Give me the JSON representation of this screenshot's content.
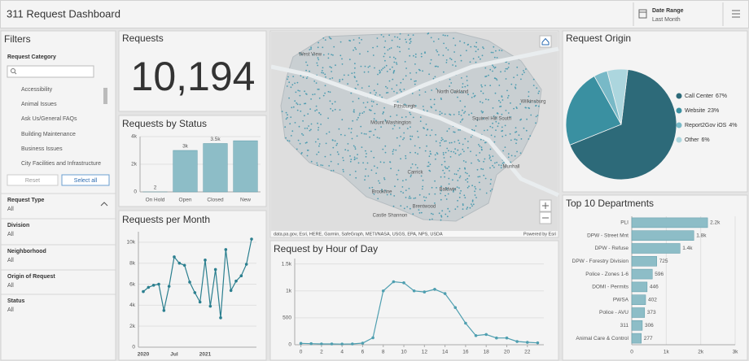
{
  "header": {
    "title": "311 Request Dashboard",
    "date_label": "Date Range",
    "date_value": "Last Month"
  },
  "filters": {
    "title": "Filters",
    "category_label": "Request Category",
    "categories": [
      "Accessibility",
      "Animal Issues",
      "Ask Us/General FAQs",
      "Building Maintenance",
      "Business Issues",
      "City Facilities and Infrastructure"
    ],
    "reset": "Reset",
    "select_all": "Select all",
    "groups": [
      {
        "label": "Request Type",
        "value": "All"
      },
      {
        "label": "Division",
        "value": "All"
      },
      {
        "label": "Neighborhood",
        "value": "All"
      },
      {
        "label": "Origin of Request",
        "value": "All"
      },
      {
        "label": "Status",
        "value": "All"
      }
    ]
  },
  "kpi": {
    "title": "Requests",
    "value": "10,194"
  },
  "map": {
    "places": [
      "West View",
      "Pittsburgh",
      "North Oakland",
      "Mount Washington",
      "Squirrel Hill South",
      "Wilkinsburg",
      "Carrick",
      "Munhall",
      "Brookline",
      "Baldwin",
      "Brentwood",
      "Castle Shannon"
    ],
    "attribution": "data.pa.gov, Esri, HERE, Garmin, SafeGraph, METI/NASA, USGS, EPA, NPS, USDA",
    "powered_by": "Powered by Esri"
  },
  "chart_data": [
    {
      "type": "bar",
      "title": "Requests by Status",
      "categories": [
        "On Hold",
        "Open",
        "Closed",
        "New"
      ],
      "values": [
        2,
        3000,
        3500,
        3700
      ],
      "value_labels": [
        "2",
        "3k",
        "3.5k",
        null
      ],
      "color": "#8dbdc7",
      "ylim": [
        0,
        4000
      ],
      "yticks": [
        0,
        {
          "value": 2000,
          "label": "2k"
        },
        {
          "value": 4000,
          "label": "4k"
        }
      ],
      "grid": true
    },
    {
      "type": "line",
      "title": "Requests per Month",
      "categories": [
        "2020",
        null,
        null,
        null,
        null,
        null,
        "Jul",
        null,
        null,
        null,
        null,
        null,
        "2021",
        null,
        null,
        null,
        null,
        null,
        null,
        null,
        null,
        null
      ],
      "values": [
        5300,
        5700,
        5900,
        6000,
        3500,
        5800,
        8600,
        8000,
        7800,
        6200,
        5200,
        4300,
        8300,
        3900,
        7400,
        2800,
        9300,
        5400,
        6300,
        6800,
        7900,
        10300
      ],
      "color": "#2b7f8f",
      "ylim": [
        0,
        11000
      ],
      "yticks": [
        0,
        {
          "value": 2000,
          "label": "2k"
        },
        {
          "value": 4000,
          "label": "4k"
        },
        {
          "value": 6000,
          "label": "6k"
        },
        {
          "value": 8000,
          "label": "8k"
        },
        {
          "value": 10000,
          "label": "10k"
        }
      ],
      "grid": true
    },
    {
      "type": "line",
      "title": "Request by Hour of Day",
      "x": [
        0,
        1,
        2,
        3,
        4,
        5,
        6,
        7,
        8,
        9,
        10,
        11,
        12,
        13,
        14,
        15,
        16,
        17,
        18,
        19,
        20,
        21,
        22,
        23
      ],
      "values": [
        25,
        20,
        15,
        15,
        12,
        15,
        30,
        130,
        1000,
        1170,
        1150,
        1000,
        980,
        1030,
        950,
        690,
        400,
        170,
        190,
        125,
        125,
        60,
        45,
        35
      ],
      "color": "#4f9fb0",
      "xlim": [
        -0.6,
        23.6
      ],
      "xticks": [
        0,
        2,
        4,
        6,
        8,
        10,
        12,
        14,
        16,
        18,
        20,
        22
      ],
      "ylim": [
        0,
        1600
      ],
      "yticks": [
        0,
        500,
        {
          "value": 1000,
          "label": "1k"
        },
        {
          "value": 1500,
          "label": "1.5k"
        }
      ],
      "grid": true
    },
    {
      "type": "pie",
      "title": "Request Origin",
      "categories": [
        "Call Center",
        "Website",
        "Report2Gov iOS",
        "Other"
      ],
      "values": [
        67,
        23,
        4,
        6
      ],
      "value_labels": [
        "67%",
        "23%",
        "4%",
        "6%"
      ],
      "colors": [
        "#2d6a79",
        "#3a90a1",
        "#78b9c7",
        "#acd6de"
      ]
    },
    {
      "type": "hbar",
      "title": "Top 10 Departments",
      "categories": [
        "PLI",
        "DPW - Street Mnt",
        "DPW - Refuse",
        "DPW - Forestry Division",
        "Police - Zones 1-6",
        "DOMI - Permits",
        "PWSA",
        "Police - AVU",
        "311",
        "Animal Care & Control"
      ],
      "values": [
        2200,
        1800,
        1400,
        725,
        596,
        446,
        402,
        373,
        306,
        277
      ],
      "value_labels": [
        "2.2k",
        "1.8k",
        "1.4k",
        "725",
        "596",
        "446",
        "402",
        "373",
        "306",
        "277"
      ],
      "color": "#8dbdc7",
      "xlim": [
        0,
        3000
      ],
      "xticks": [
        0,
        {
          "value": 1000,
          "label": "1k"
        },
        {
          "value": 2000,
          "label": "2k"
        },
        {
          "value": 3000,
          "label": "3k"
        }
      ],
      "grid": true
    }
  ]
}
